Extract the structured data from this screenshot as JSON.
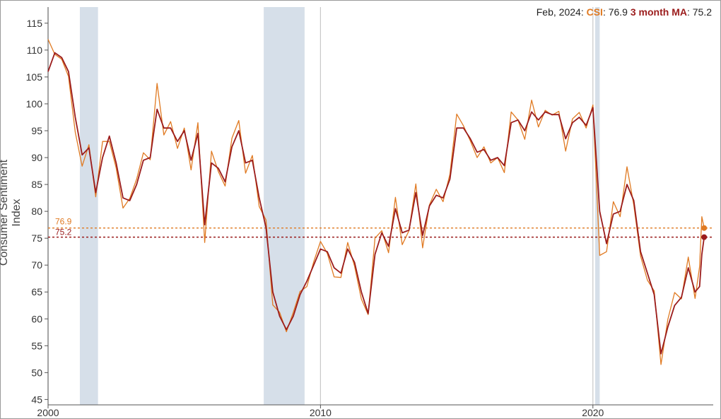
{
  "readout": {
    "date": "Feb, 2024",
    "sep1": ": ",
    "csi_label": "CSI",
    "csi_value": "76.9",
    "ma_label": "3 month MA",
    "ma_value": "75.2"
  },
  "colors": {
    "csi": "#e07a22",
    "ma": "#9b1c1c",
    "recession": "#d6dfe9",
    "axis": "#555555",
    "year_line": "#c8c8c8"
  },
  "chart_data": {
    "type": "line",
    "ylabel": "Consumer Sentiment Index",
    "xlabel": "",
    "xlim": [
      "2000-01",
      "2024-06"
    ],
    "ylim": [
      44,
      118
    ],
    "yticks": [
      45,
      50,
      55,
      60,
      65,
      70,
      75,
      80,
      85,
      90,
      95,
      100,
      105,
      110,
      115
    ],
    "xticks": [
      2000,
      2010,
      2020
    ],
    "grid": false,
    "recessions": [
      [
        "2001-03",
        "2001-11"
      ],
      [
        "2007-12",
        "2009-06"
      ],
      [
        "2020-02",
        "2020-04"
      ]
    ],
    "reference_lines": [
      {
        "series": "CSI",
        "value": 76.9,
        "label": "76.9"
      },
      {
        "series": "3 month MA",
        "value": 75.2,
        "label": "75.2"
      }
    ],
    "series": [
      {
        "name": "CSI",
        "points": [
          [
            "2000-01",
            112.0
          ],
          [
            "2000-04",
            109.2
          ],
          [
            "2000-07",
            108.3
          ],
          [
            "2000-10",
            105.1
          ],
          [
            "2001-01",
            94.7
          ],
          [
            "2001-04",
            88.4
          ],
          [
            "2001-07",
            92.4
          ],
          [
            "2001-10",
            82.7
          ],
          [
            "2002-01",
            93.0
          ],
          [
            "2002-04",
            93.0
          ],
          [
            "2002-07",
            88.1
          ],
          [
            "2002-10",
            80.6
          ],
          [
            "2003-01",
            82.4
          ],
          [
            "2003-04",
            86.0
          ],
          [
            "2003-07",
            90.9
          ],
          [
            "2003-10",
            89.6
          ],
          [
            "2004-01",
            103.8
          ],
          [
            "2004-04",
            94.2
          ],
          [
            "2004-07",
            96.7
          ],
          [
            "2004-10",
            91.7
          ],
          [
            "2005-01",
            95.5
          ],
          [
            "2005-04",
            87.7
          ],
          [
            "2005-07",
            96.5
          ],
          [
            "2005-10",
            74.2
          ],
          [
            "2006-01",
            91.2
          ],
          [
            "2006-04",
            87.4
          ],
          [
            "2006-07",
            84.7
          ],
          [
            "2006-10",
            93.6
          ],
          [
            "2007-01",
            96.9
          ],
          [
            "2007-04",
            87.1
          ],
          [
            "2007-07",
            90.4
          ],
          [
            "2007-10",
            80.9
          ],
          [
            "2008-01",
            78.4
          ],
          [
            "2008-04",
            62.6
          ],
          [
            "2008-07",
            61.2
          ],
          [
            "2008-10",
            57.6
          ],
          [
            "2009-01",
            61.2
          ],
          [
            "2009-04",
            65.1
          ],
          [
            "2009-07",
            66.0
          ],
          [
            "2009-10",
            70.6
          ],
          [
            "2010-01",
            74.4
          ],
          [
            "2010-04",
            72.2
          ],
          [
            "2010-07",
            67.8
          ],
          [
            "2010-10",
            67.7
          ],
          [
            "2011-01",
            74.2
          ],
          [
            "2011-04",
            69.8
          ],
          [
            "2011-07",
            63.7
          ],
          [
            "2011-10",
            60.8
          ],
          [
            "2012-01",
            75.0
          ],
          [
            "2012-04",
            76.4
          ],
          [
            "2012-07",
            72.3
          ],
          [
            "2012-10",
            82.6
          ],
          [
            "2013-01",
            73.8
          ],
          [
            "2013-04",
            76.4
          ],
          [
            "2013-07",
            85.1
          ],
          [
            "2013-10",
            73.2
          ],
          [
            "2014-01",
            81.2
          ],
          [
            "2014-04",
            84.1
          ],
          [
            "2014-07",
            81.8
          ],
          [
            "2014-10",
            86.9
          ],
          [
            "2015-01",
            98.1
          ],
          [
            "2015-04",
            95.9
          ],
          [
            "2015-07",
            93.1
          ],
          [
            "2015-10",
            90.0
          ],
          [
            "2016-01",
            92.0
          ],
          [
            "2016-04",
            89.0
          ],
          [
            "2016-07",
            90.0
          ],
          [
            "2016-10",
            87.2
          ],
          [
            "2017-01",
            98.5
          ],
          [
            "2017-04",
            97.0
          ],
          [
            "2017-07",
            93.4
          ],
          [
            "2017-10",
            100.7
          ],
          [
            "2018-01",
            95.7
          ],
          [
            "2018-04",
            98.8
          ],
          [
            "2018-07",
            97.9
          ],
          [
            "2018-10",
            98.6
          ],
          [
            "2019-01",
            91.2
          ],
          [
            "2019-04",
            97.2
          ],
          [
            "2019-07",
            98.4
          ],
          [
            "2019-10",
            95.5
          ],
          [
            "2020-01",
            99.8
          ],
          [
            "2020-04",
            71.8
          ],
          [
            "2020-07",
            72.5
          ],
          [
            "2020-10",
            81.8
          ],
          [
            "2021-01",
            79.0
          ],
          [
            "2021-04",
            88.3
          ],
          [
            "2021-07",
            81.2
          ],
          [
            "2021-10",
            71.7
          ],
          [
            "2022-01",
            67.2
          ],
          [
            "2022-04",
            65.2
          ],
          [
            "2022-07",
            51.5
          ],
          [
            "2022-10",
            59.9
          ],
          [
            "2023-01",
            64.9
          ],
          [
            "2023-04",
            63.7
          ],
          [
            "2023-07",
            71.5
          ],
          [
            "2023-10",
            63.8
          ],
          [
            "2023-12",
            69.7
          ],
          [
            "2024-01",
            79.0
          ],
          [
            "2024-02",
            76.9
          ]
        ]
      },
      {
        "name": "3 month MA",
        "points": [
          [
            "2000-01",
            106.0
          ],
          [
            "2000-04",
            109.5
          ],
          [
            "2000-07",
            108.6
          ],
          [
            "2000-10",
            106.0
          ],
          [
            "2001-01",
            97.5
          ],
          [
            "2001-04",
            90.5
          ],
          [
            "2001-07",
            91.8
          ],
          [
            "2001-10",
            83.5
          ],
          [
            "2002-01",
            90.0
          ],
          [
            "2002-04",
            94.0
          ],
          [
            "2002-07",
            89.0
          ],
          [
            "2002-10",
            82.5
          ],
          [
            "2003-01",
            82.0
          ],
          [
            "2003-04",
            85.0
          ],
          [
            "2003-07",
            89.5
          ],
          [
            "2003-10",
            90.0
          ],
          [
            "2004-01",
            99.0
          ],
          [
            "2004-04",
            95.5
          ],
          [
            "2004-07",
            95.5
          ],
          [
            "2004-10",
            93.0
          ],
          [
            "2005-01",
            95.0
          ],
          [
            "2005-04",
            89.5
          ],
          [
            "2005-07",
            94.5
          ],
          [
            "2005-10",
            77.5
          ],
          [
            "2006-01",
            89.0
          ],
          [
            "2006-04",
            88.0
          ],
          [
            "2006-07",
            85.5
          ],
          [
            "2006-10",
            92.0
          ],
          [
            "2007-01",
            95.0
          ],
          [
            "2007-04",
            89.0
          ],
          [
            "2007-07",
            89.5
          ],
          [
            "2007-10",
            82.5
          ],
          [
            "2008-01",
            77.0
          ],
          [
            "2008-04",
            65.0
          ],
          [
            "2008-07",
            60.5
          ],
          [
            "2008-10",
            58.0
          ],
          [
            "2009-01",
            60.5
          ],
          [
            "2009-04",
            64.5
          ],
          [
            "2009-07",
            67.0
          ],
          [
            "2009-10",
            70.0
          ],
          [
            "2010-01",
            73.0
          ],
          [
            "2010-04",
            72.5
          ],
          [
            "2010-07",
            69.5
          ],
          [
            "2010-10",
            68.5
          ],
          [
            "2011-01",
            73.0
          ],
          [
            "2011-04",
            70.5
          ],
          [
            "2011-07",
            65.0
          ],
          [
            "2011-10",
            61.0
          ],
          [
            "2012-01",
            72.0
          ],
          [
            "2012-04",
            76.0
          ],
          [
            "2012-07",
            73.5
          ],
          [
            "2012-10",
            80.5
          ],
          [
            "2013-01",
            76.0
          ],
          [
            "2013-04",
            76.5
          ],
          [
            "2013-07",
            83.5
          ],
          [
            "2013-10",
            75.5
          ],
          [
            "2014-01",
            81.0
          ],
          [
            "2014-04",
            83.0
          ],
          [
            "2014-07",
            82.5
          ],
          [
            "2014-10",
            86.0
          ],
          [
            "2015-01",
            95.5
          ],
          [
            "2015-04",
            95.5
          ],
          [
            "2015-07",
            93.5
          ],
          [
            "2015-10",
            91.0
          ],
          [
            "2016-01",
            91.5
          ],
          [
            "2016-04",
            89.5
          ],
          [
            "2016-07",
            90.0
          ],
          [
            "2016-10",
            88.5
          ],
          [
            "2017-01",
            96.5
          ],
          [
            "2017-04",
            97.0
          ],
          [
            "2017-07",
            95.0
          ],
          [
            "2017-10",
            98.5
          ],
          [
            "2018-01",
            97.0
          ],
          [
            "2018-04",
            98.5
          ],
          [
            "2018-07",
            98.0
          ],
          [
            "2018-10",
            98.0
          ],
          [
            "2019-01",
            93.5
          ],
          [
            "2019-04",
            96.5
          ],
          [
            "2019-07",
            97.5
          ],
          [
            "2019-10",
            96.0
          ],
          [
            "2020-01",
            99.3
          ],
          [
            "2020-04",
            80.0
          ],
          [
            "2020-07",
            74.0
          ],
          [
            "2020-10",
            79.5
          ],
          [
            "2021-01",
            80.0
          ],
          [
            "2021-04",
            85.0
          ],
          [
            "2021-07",
            82.0
          ],
          [
            "2021-10",
            72.5
          ],
          [
            "2022-01",
            68.5
          ],
          [
            "2022-04",
            64.5
          ],
          [
            "2022-07",
            53.5
          ],
          [
            "2022-10",
            58.5
          ],
          [
            "2023-01",
            62.5
          ],
          [
            "2023-04",
            64.0
          ],
          [
            "2023-07",
            69.5
          ],
          [
            "2023-10",
            65.0
          ],
          [
            "2023-12",
            66.0
          ],
          [
            "2024-01",
            72.0
          ],
          [
            "2024-02",
            75.2
          ]
        ]
      }
    ]
  }
}
